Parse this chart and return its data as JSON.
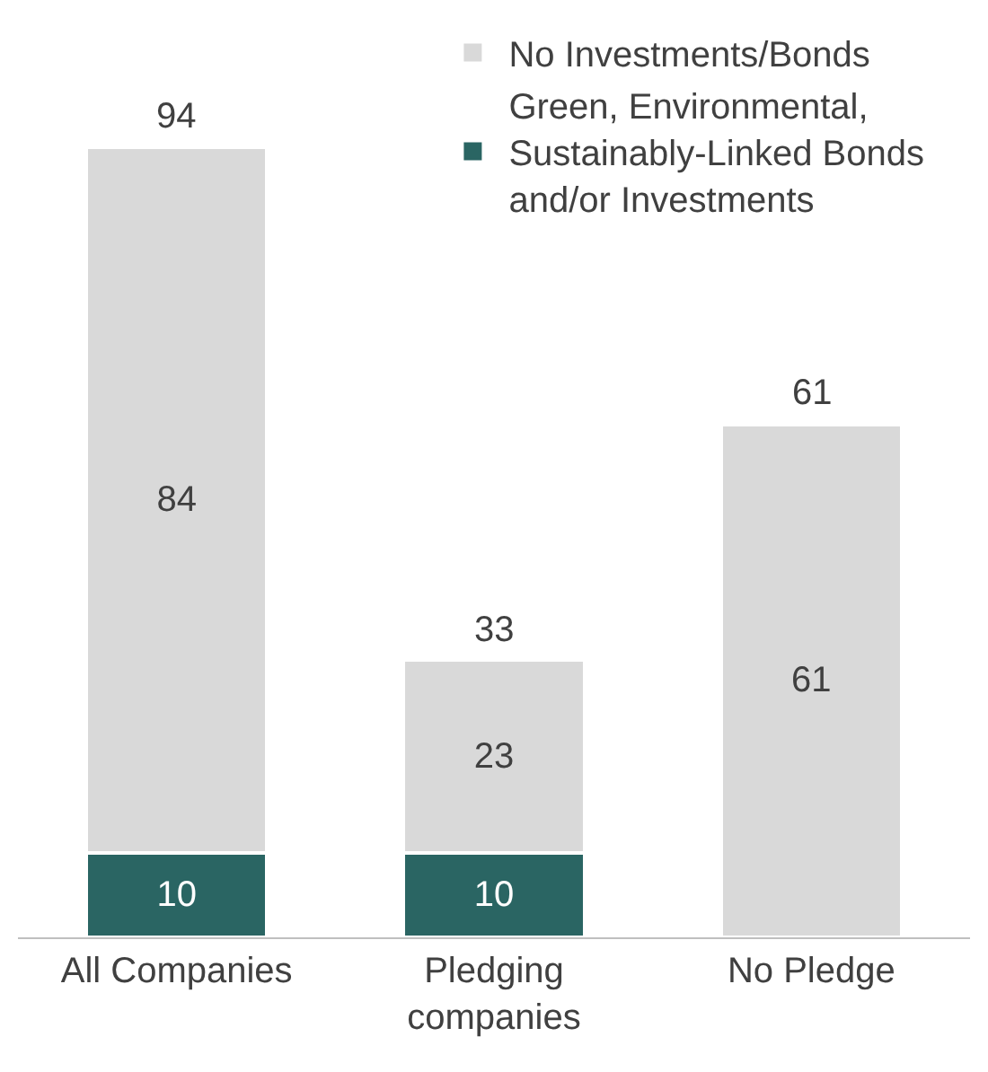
{
  "chart_data": {
    "type": "bar",
    "stacked": true,
    "categories": [
      "All Companies",
      "Pledging companies",
      "No Pledge"
    ],
    "series": [
      {
        "name": "Green, Environmental, Sustainably-Linked Bonds and/or Investments",
        "color": "#2a6563",
        "values": [
          10,
          10,
          null
        ]
      },
      {
        "name": "No Investments/Bonds",
        "color": "#d9d9d9",
        "values": [
          84,
          23,
          61
        ]
      }
    ],
    "data_labels": true,
    "totals": [
      "94",
      "33",
      "61"
    ],
    "legend": "top right"
  }
}
